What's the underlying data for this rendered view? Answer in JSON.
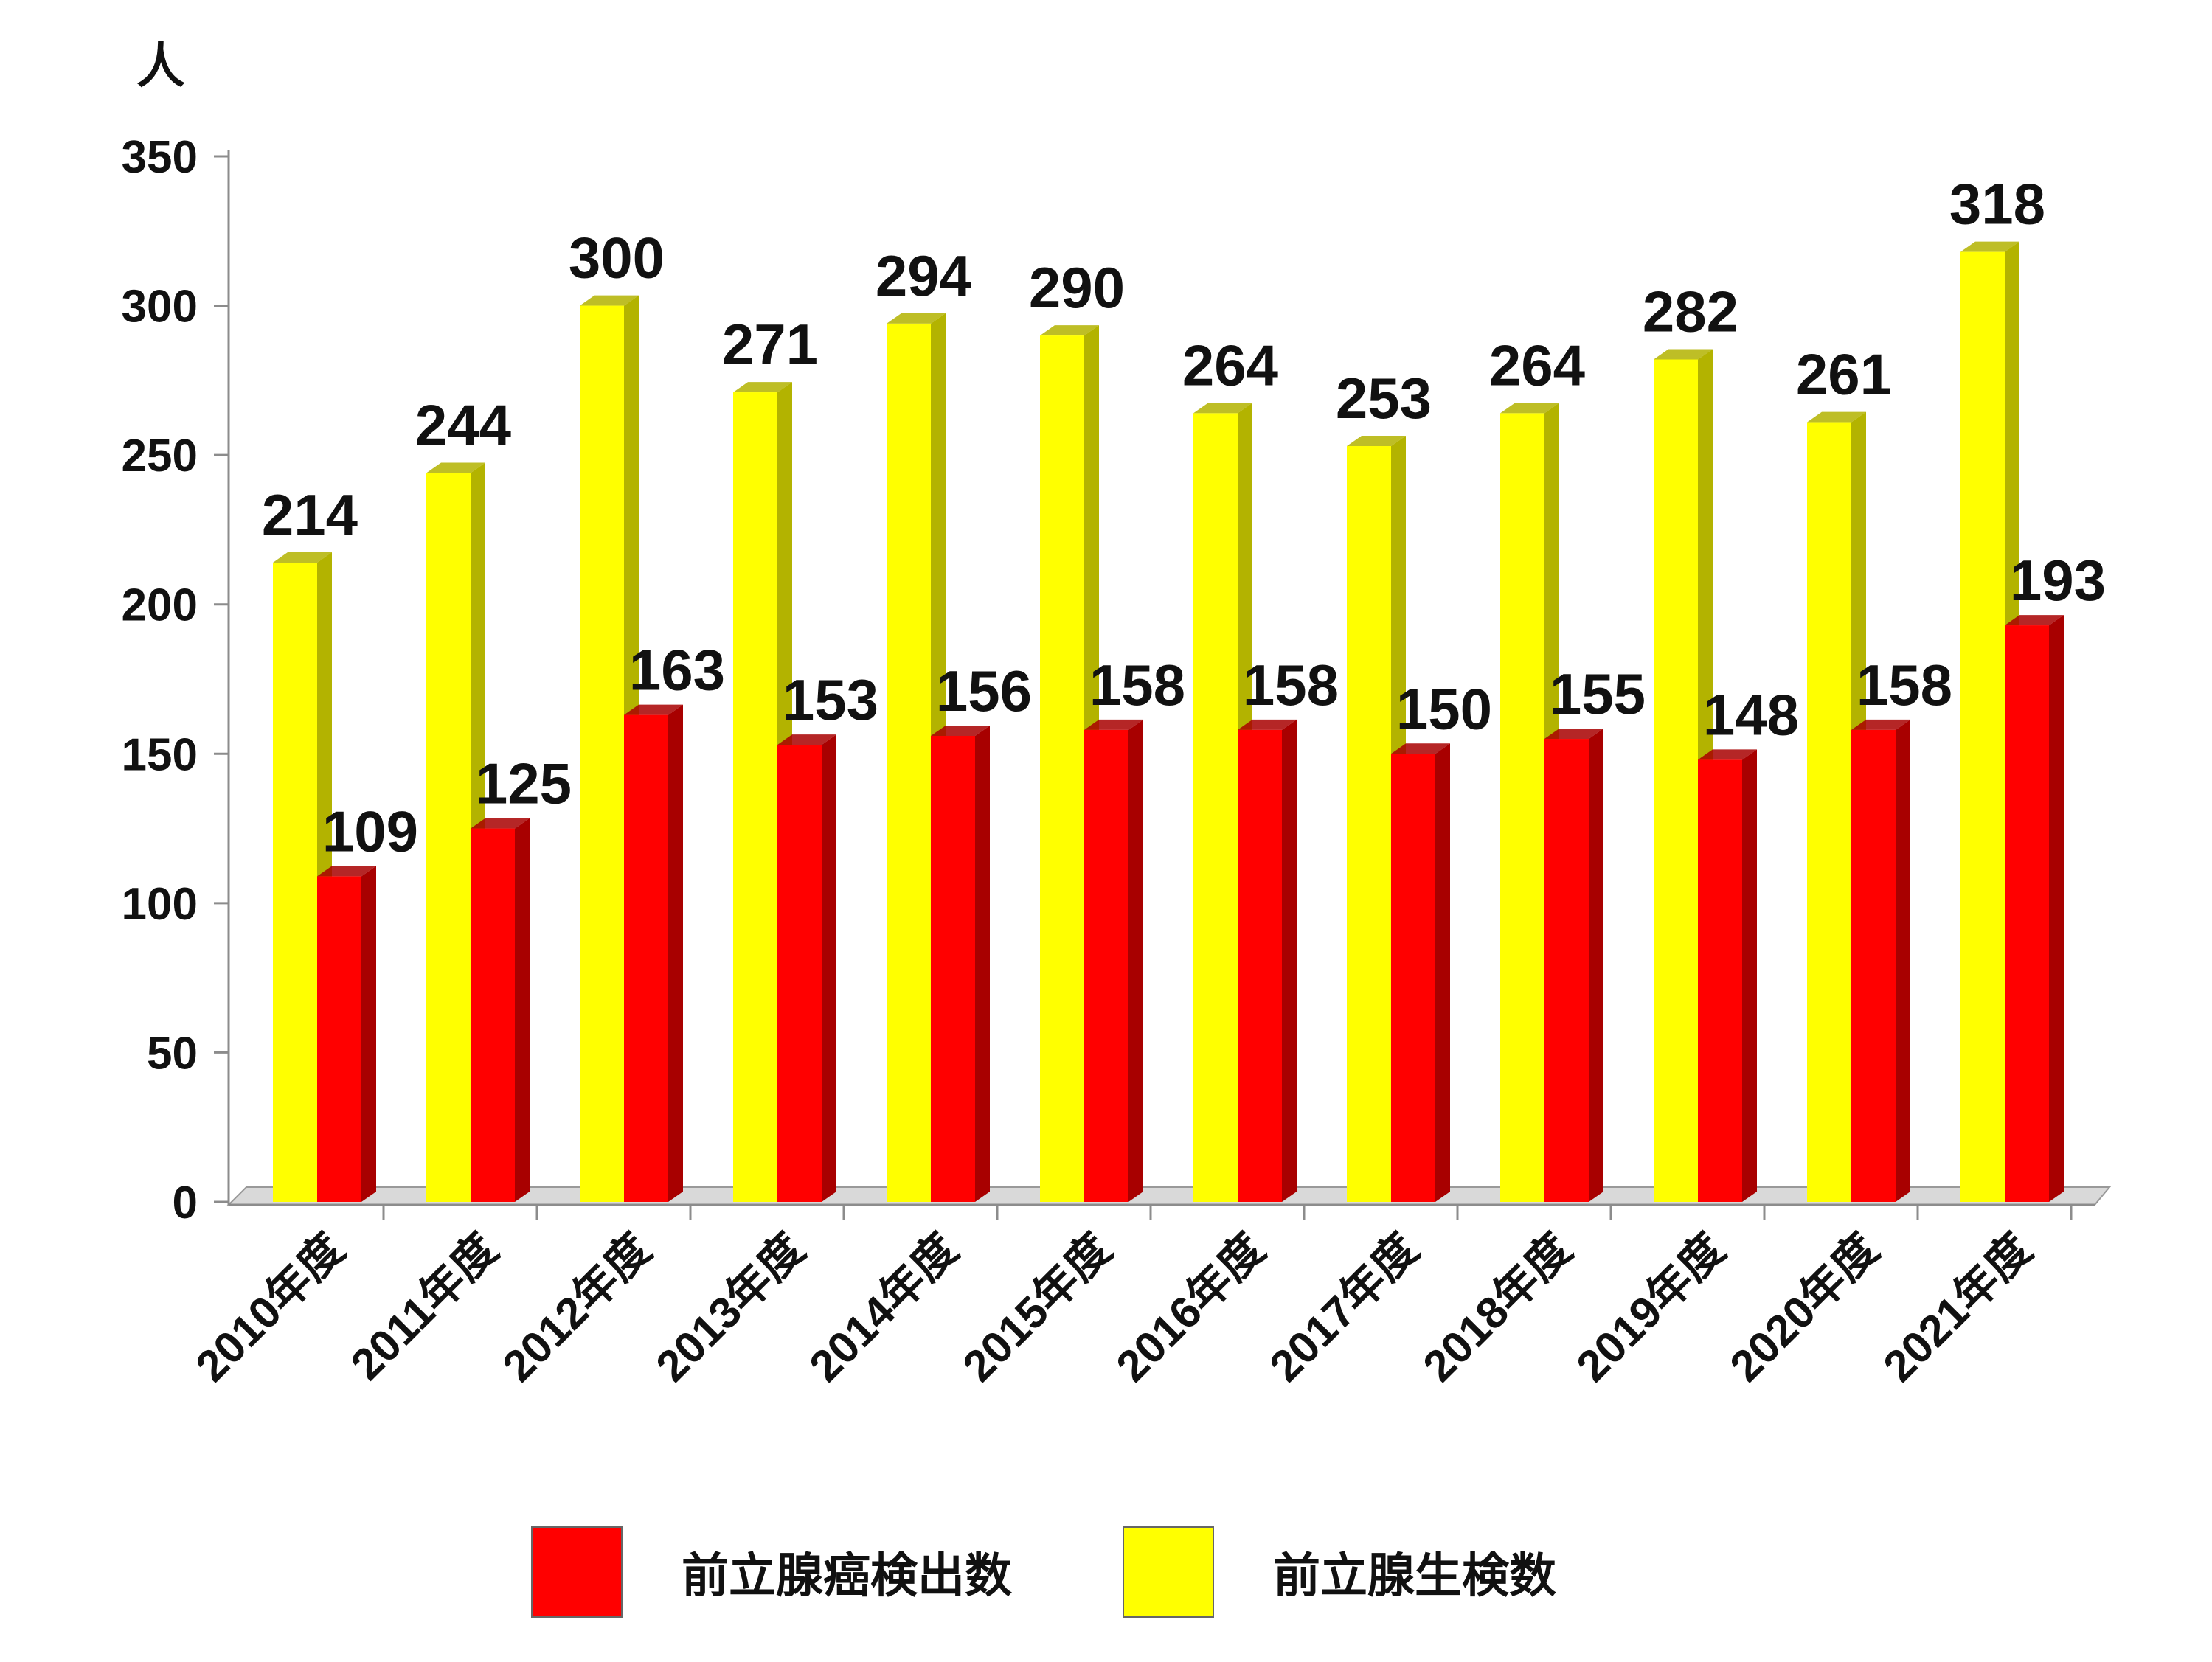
{
  "chart_data": {
    "type": "bar",
    "ylabel": "人",
    "ylim": [
      0,
      350
    ],
    "yticks": [
      0,
      50,
      100,
      150,
      200,
      250,
      300,
      350
    ],
    "categories": [
      "2010年度",
      "2011年度",
      "2012年度",
      "2013年度",
      "2014年度",
      "2015年度",
      "2016年度",
      "2017年度",
      "2018年度",
      "2019年度",
      "2020年度",
      "2021年度"
    ],
    "series": [
      {
        "name": "前立腺生検数",
        "color": "#ffff00",
        "side_color": "#b3b300",
        "values": [
          214,
          244,
          300,
          271,
          294,
          290,
          264,
          253,
          264,
          282,
          261,
          318
        ]
      },
      {
        "name": "前立腺癌検出数",
        "color": "#ff0000",
        "side_color": "#a80000",
        "values": [
          109,
          125,
          163,
          153,
          156,
          158,
          158,
          150,
          155,
          148,
          158,
          193
        ]
      }
    ],
    "legend": [
      {
        "label": "前立腺癌検出数",
        "color": "#ff0000"
      },
      {
        "label": "前立腺生検数",
        "color": "#ffff00"
      }
    ],
    "legend_position": "bottom",
    "grid": false
  }
}
